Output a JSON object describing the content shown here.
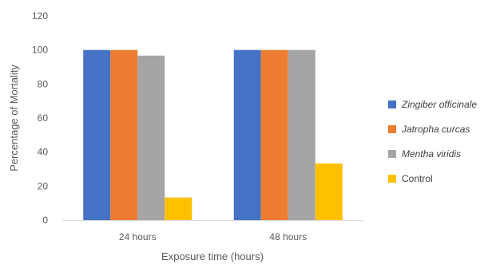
{
  "chart_data": {
    "type": "bar",
    "xlabel": "Exposure time (hours)",
    "ylabel": "Percentage of Mortality",
    "categories": [
      "24 hours",
      "48 hours"
    ],
    "ylim": [
      0,
      120
    ],
    "yticks": [
      0,
      20,
      40,
      60,
      80,
      100,
      120
    ],
    "grid": false,
    "legend_position": "right",
    "series": [
      {
        "name": "Zingiber officinale",
        "values": [
          100,
          100
        ],
        "color": "#4472C4",
        "italic": true
      },
      {
        "name": "Jatropha curcas",
        "values": [
          100,
          100
        ],
        "color": "#ED7D31",
        "italic": true
      },
      {
        "name": "Mentha viridis",
        "values": [
          96.7,
          100
        ],
        "color": "#A5A5A5",
        "italic": true
      },
      {
        "name": "Control",
        "values": [
          13.3,
          33.3
        ],
        "color": "#FFC000",
        "italic": false
      }
    ]
  }
}
